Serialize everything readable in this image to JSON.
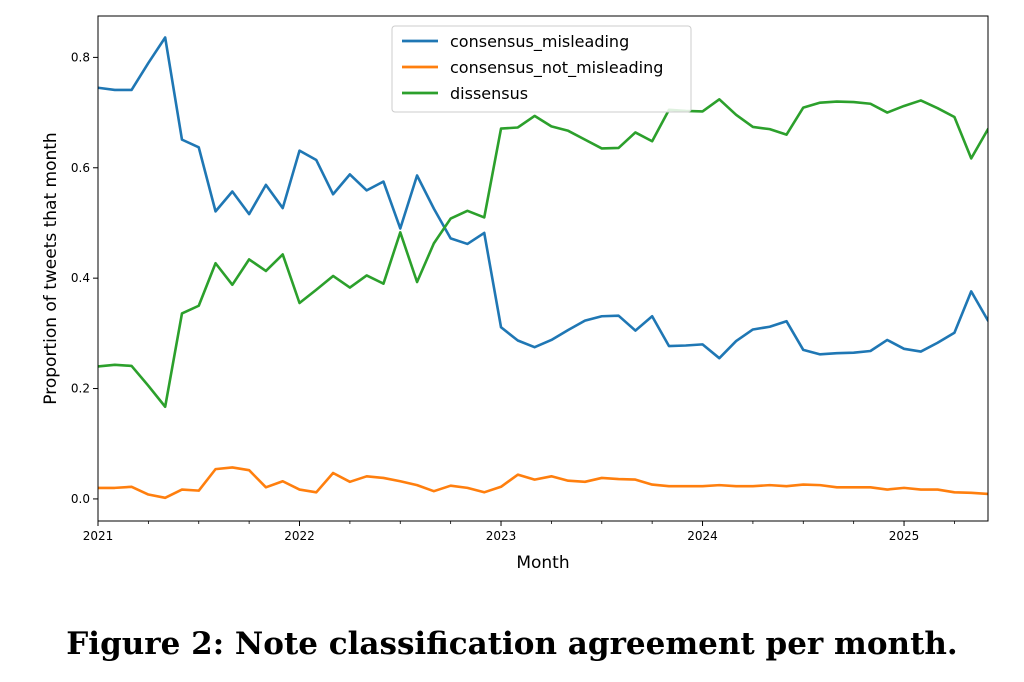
{
  "caption": "Figure 2: Note classification agreement per month.",
  "chart_data": {
    "type": "line",
    "title": "",
    "xlabel": "Month",
    "ylabel": "Proportion of tweets that month",
    "x_start": "2021-01",
    "x_ticks": [
      "2021",
      "2022",
      "2023",
      "2024",
      "2025"
    ],
    "y_ticks": [
      "0.0",
      "0.2",
      "0.4",
      "0.6",
      "0.8"
    ],
    "ylim": [
      -0.04,
      0.875
    ],
    "grid": false,
    "legend_position": "upper center",
    "series": [
      {
        "name": "consensus_misleading",
        "color": "#1f77b4",
        "values": [
          0.745,
          0.741,
          0.741,
          0.79,
          0.836,
          0.651,
          0.637,
          0.521,
          0.557,
          0.516,
          0.569,
          0.527,
          0.631,
          0.614,
          0.552,
          0.588,
          0.559,
          0.575,
          0.49,
          0.586,
          0.526,
          0.472,
          0.462,
          0.482,
          0.311,
          0.287,
          0.275,
          0.288,
          0.306,
          0.323,
          0.331,
          0.332,
          0.305,
          0.331,
          0.277,
          0.278,
          0.28,
          0.255,
          0.286,
          0.307,
          0.312,
          0.322,
          0.27,
          0.262,
          0.264,
          0.265,
          0.268,
          0.288,
          0.272,
          0.267,
          0.283,
          0.301,
          0.376,
          0.323
        ]
      },
      {
        "name": "consensus_not_misleading",
        "color": "#ff7f0e",
        "values": [
          0.02,
          0.02,
          0.022,
          0.008,
          0.002,
          0.017,
          0.015,
          0.054,
          0.057,
          0.052,
          0.021,
          0.032,
          0.017,
          0.012,
          0.047,
          0.031,
          0.041,
          0.038,
          0.032,
          0.025,
          0.014,
          0.024,
          0.02,
          0.012,
          0.022,
          0.044,
          0.035,
          0.041,
          0.033,
          0.031,
          0.038,
          0.036,
          0.035,
          0.026,
          0.023,
          0.023,
          0.023,
          0.025,
          0.023,
          0.023,
          0.025,
          0.023,
          0.026,
          0.025,
          0.021,
          0.021,
          0.021,
          0.017,
          0.02,
          0.017,
          0.017,
          0.012,
          0.011,
          0.009
        ]
      },
      {
        "name": "dissensus",
        "color": "#2ca02c",
        "values": [
          0.24,
          0.243,
          0.241,
          0.205,
          0.167,
          0.336,
          0.35,
          0.427,
          0.388,
          0.434,
          0.413,
          0.443,
          0.355,
          0.379,
          0.404,
          0.383,
          0.405,
          0.39,
          0.483,
          0.393,
          0.463,
          0.508,
          0.522,
          0.51,
          0.671,
          0.673,
          0.694,
          0.675,
          0.667,
          0.651,
          0.635,
          0.636,
          0.664,
          0.648,
          0.705,
          0.703,
          0.702,
          0.724,
          0.696,
          0.674,
          0.67,
          0.66,
          0.709,
          0.718,
          0.72,
          0.719,
          0.716,
          0.7,
          0.712,
          0.722,
          0.708,
          0.692,
          0.617,
          0.67
        ]
      }
    ]
  }
}
